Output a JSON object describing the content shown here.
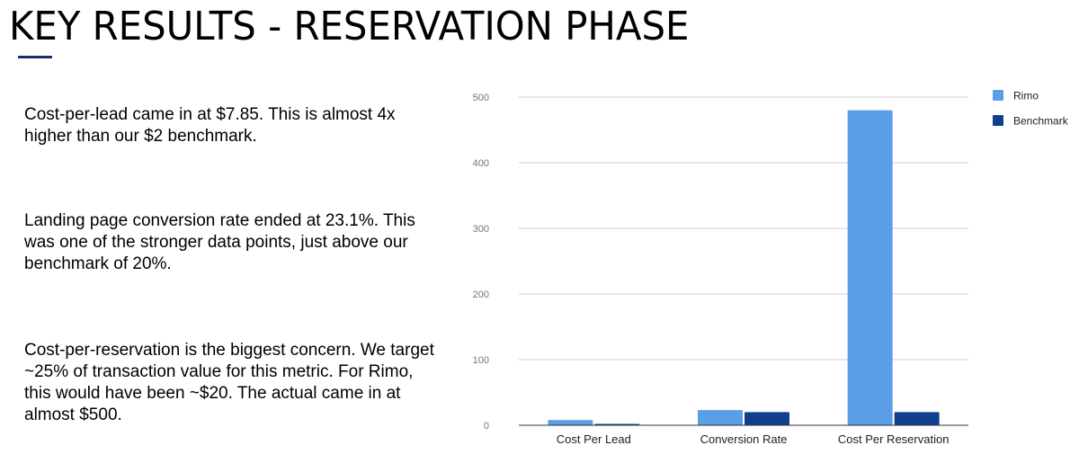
{
  "title": "KEY RESULTS - RESERVATION PHASE",
  "colors": {
    "accent_rule": "#1f2f66",
    "rimo": "#5b9ee8",
    "benchmark": "#10408c",
    "grid": "#cccccc"
  },
  "paragraphs": [
    "Cost-per-lead came in at $7.85. This is almost 4x higher than our $2 benchmark.",
    "Landing page conversion rate ended at 23.1%. This was one of the stronger data points, just above our benchmark of 20%.",
    "Cost-per-reservation is the biggest concern. We target ~25% of transaction value for this metric. For Rimo, this would have been ~$20. The actual came in at almost $500."
  ],
  "chart_data": {
    "type": "bar",
    "categories": [
      "Cost Per Lead",
      "Conversion Rate",
      "Cost Per Reservation"
    ],
    "series": [
      {
        "name": "Rimo",
        "values": [
          7.85,
          23.1,
          480
        ]
      },
      {
        "name": "Benchmark",
        "values": [
          2,
          20,
          20
        ]
      }
    ],
    "ylim": [
      0,
      500
    ],
    "yticks": [
      "0",
      "100",
      "200",
      "300",
      "400",
      "500"
    ],
    "grid": true,
    "legend_position": "right"
  }
}
